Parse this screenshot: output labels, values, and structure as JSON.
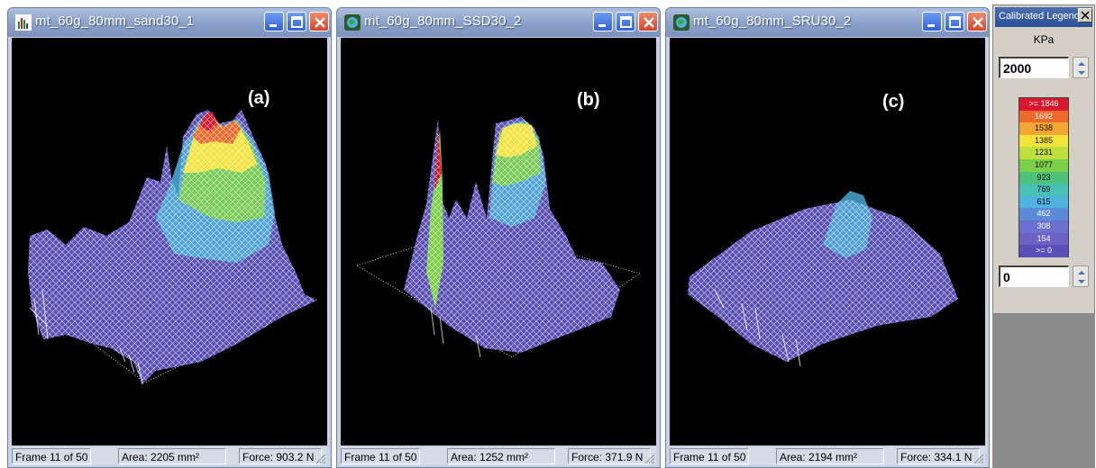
{
  "windows": [
    {
      "title": "mt_60g_80mm_sand30_1",
      "label": "(a)",
      "frame": "Frame 11 of 50",
      "area": "Area: 2205 mm²",
      "force": "Force: 903.2 N",
      "icon": "chart-app-icon"
    },
    {
      "title": "mt_60g_80mm_SSD30_2",
      "label": "(b)",
      "frame": "Frame 11 of 50",
      "area": "Area: 1252 mm²",
      "force": "Force: 371.9 N",
      "icon": "globe-app-icon"
    },
    {
      "title": "mt_60g_80mm_SRU30_2",
      "label": "(c)",
      "frame": "Frame 11 of 50",
      "area": "Area: 2194 mm²",
      "force": "Force: 334.1 N",
      "icon": "globe-app-icon"
    }
  ],
  "legend": {
    "title": "Calibrated Legend",
    "unit": "KPa",
    "max_value": "2000",
    "min_value": "0",
    "scale": [
      {
        "label": ">= 1846",
        "color": "#d8182c"
      },
      {
        "label": "1692",
        "color": "#ee6a2a"
      },
      {
        "label": "1538",
        "color": "#f4a634"
      },
      {
        "label": "1385",
        "color": "#f2e33a"
      },
      {
        "label": "1231",
        "color": "#bfe03c"
      },
      {
        "label": "1077",
        "color": "#7ccf48"
      },
      {
        "label": "923",
        "color": "#4fc27a"
      },
      {
        "label": "769",
        "color": "#49c0b4"
      },
      {
        "label": "615",
        "color": "#4fb2df"
      },
      {
        "label": "462",
        "color": "#5a8ad8"
      },
      {
        "label": "308",
        "color": "#6a6fd0"
      },
      {
        "label": "154",
        "color": "#6c62c4"
      },
      {
        "label": ">= 0",
        "color": "#5a4fb8"
      }
    ]
  }
}
